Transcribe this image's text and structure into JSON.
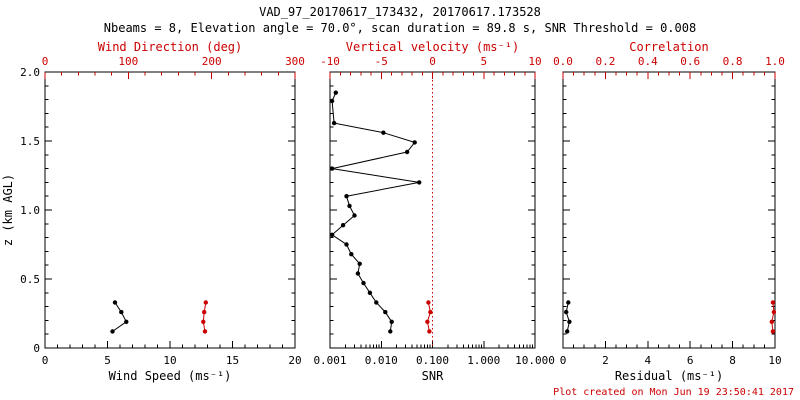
{
  "header": {
    "title": "VAD_97_20170617_173432, 20170617.173528",
    "subtitle": "Nbeams = 8, Elevation angle = 70.0°, scan duration = 89.8 s, SNR Threshold = 0.008"
  },
  "footer": {
    "created": "Plot created on Mon Jun 19 23:50:41 2017"
  },
  "colors": {
    "axis": "#000000",
    "accent": "#cc0000",
    "background": "#ffffff"
  },
  "chart_data": [
    {
      "id": "wind-panel",
      "type": "scatter",
      "y_axis": {
        "label": "z (km AGL)",
        "min": 0,
        "max": 2.0,
        "ticks": [
          0,
          0.5,
          1.0,
          1.5,
          2.0
        ],
        "tick_labels": [
          "0",
          "0.5",
          "1.0",
          "1.5",
          "2.0"
        ],
        "minor_step": 0.1,
        "show_labels": true
      },
      "x_bottom": {
        "label": "Wind Speed (ms⁻¹)",
        "scale": "linear",
        "min": 0,
        "max": 20,
        "ticks": [
          0,
          5,
          10,
          15,
          20
        ],
        "tick_labels": [
          "0",
          "5",
          "10",
          "15",
          "20"
        ],
        "minor_step": 1,
        "color": "black"
      },
      "x_top": {
        "label": "Wind Direction (deg)",
        "scale": "linear",
        "min": 0,
        "max": 300,
        "ticks": [
          0,
          100,
          200,
          300
        ],
        "tick_labels": [
          "0",
          "100",
          "200",
          "300"
        ],
        "minor_step": 20,
        "color": "red"
      },
      "series": [
        {
          "name": "wind-speed",
          "axis": "bottom",
          "color": "black",
          "line": true,
          "points": [
            {
              "x": 5.4,
              "z": 0.12
            },
            {
              "x": 6.5,
              "z": 0.19
            },
            {
              "x": 6.1,
              "z": 0.26
            },
            {
              "x": 5.6,
              "z": 0.33
            }
          ]
        },
        {
          "name": "wind-direction",
          "axis": "top",
          "color": "red",
          "line": true,
          "points": [
            {
              "x": 192,
              "z": 0.12
            },
            {
              "x": 190,
              "z": 0.19
            },
            {
              "x": 191,
              "z": 0.26
            },
            {
              "x": 193,
              "z": 0.33
            }
          ]
        }
      ]
    },
    {
      "id": "snr-panel",
      "type": "scatter",
      "y_axis": {
        "label": "",
        "min": 0,
        "max": 2.0,
        "ticks": [
          0,
          0.5,
          1.0,
          1.5,
          2.0
        ],
        "tick_labels": [
          "",
          "",
          "",
          "",
          ""
        ],
        "minor_step": 0.1,
        "show_labels": false
      },
      "x_bottom": {
        "label": "SNR",
        "scale": "log",
        "min": 0.001,
        "max": 10,
        "ticks": [
          0.001,
          0.01,
          0.1,
          1,
          10
        ],
        "tick_labels": [
          "0.001",
          "0.010",
          "0.100",
          "1.000",
          "10.000"
        ],
        "color": "black"
      },
      "x_top": {
        "label": "Vertical velocity (ms⁻¹)",
        "scale": "linear",
        "min": -10,
        "max": 10,
        "ticks": [
          -10,
          -5,
          0,
          5,
          10
        ],
        "tick_labels": [
          "-10",
          "-5",
          "0",
          "5",
          "10"
        ],
        "minor_step": 1,
        "color": "red"
      },
      "reference_lines": [
        {
          "axis": "top",
          "value": 0,
          "style": "dotted",
          "color": "red",
          "name": "zero-velocity-line"
        }
      ],
      "series": [
        {
          "name": "snr-profile",
          "axis": "bottom",
          "color": "black",
          "line": true,
          "points": [
            {
              "x": 0.015,
              "z": 0.12
            },
            {
              "x": 0.016,
              "z": 0.19
            },
            {
              "x": 0.012,
              "z": 0.26
            },
            {
              "x": 0.008,
              "z": 0.33
            },
            {
              "x": 0.006,
              "z": 0.4
            },
            {
              "x": 0.0045,
              "z": 0.47
            },
            {
              "x": 0.0035,
              "z": 0.54
            },
            {
              "x": 0.0038,
              "z": 0.61
            },
            {
              "x": 0.0026,
              "z": 0.68
            },
            {
              "x": 0.0021,
              "z": 0.75
            },
            {
              "x": 0.0011,
              "z": 0.82
            },
            {
              "x": 0.0018,
              "z": 0.89
            },
            {
              "x": 0.003,
              "z": 0.96
            },
            {
              "x": 0.0024,
              "z": 1.03
            },
            {
              "x": 0.0021,
              "z": 1.1
            },
            {
              "x": 0.055,
              "z": 1.2
            },
            {
              "x": 0.0011,
              "z": 1.3
            },
            {
              "x": 0.032,
              "z": 1.42
            },
            {
              "x": 0.045,
              "z": 1.49
            },
            {
              "x": 0.011,
              "z": 1.56
            },
            {
              "x": 0.0012,
              "z": 1.63
            },
            {
              "x": 0.0011,
              "z": 1.79
            },
            {
              "x": 0.0013,
              "z": 1.85
            }
          ]
        },
        {
          "name": "vertical-velocity",
          "axis": "top",
          "color": "red",
          "line": true,
          "points": [
            {
              "x": -0.3,
              "z": 0.12
            },
            {
              "x": -0.5,
              "z": 0.19
            },
            {
              "x": -0.2,
              "z": 0.26
            },
            {
              "x": -0.4,
              "z": 0.33
            }
          ]
        }
      ]
    },
    {
      "id": "residual-panel",
      "type": "scatter",
      "y_axis": {
        "label": "",
        "min": 0,
        "max": 2.0,
        "ticks": [
          0,
          0.5,
          1.0,
          1.5,
          2.0
        ],
        "tick_labels": [
          "",
          "",
          "",
          "",
          ""
        ],
        "minor_step": 0.1,
        "show_labels": false
      },
      "x_bottom": {
        "label": "Residual (ms⁻¹)",
        "scale": "linear",
        "min": 0,
        "max": 10,
        "ticks": [
          0,
          2,
          4,
          6,
          8,
          10
        ],
        "tick_labels": [
          "0",
          "2",
          "4",
          "6",
          "8",
          "10"
        ],
        "minor_step": 0.5,
        "color": "black"
      },
      "x_top": {
        "label": "Correlation",
        "scale": "linear",
        "min": 0,
        "max": 1,
        "ticks": [
          0,
          0.2,
          0.4,
          0.6,
          0.8,
          1.0
        ],
        "tick_labels": [
          "0.0",
          "0.2",
          "0.4",
          "0.6",
          "0.8",
          "1.0"
        ],
        "minor_step": 0.05,
        "color": "red"
      },
      "series": [
        {
          "name": "residual",
          "axis": "bottom",
          "color": "black",
          "line": true,
          "points": [
            {
              "x": 0.2,
              "z": 0.12
            },
            {
              "x": 0.3,
              "z": 0.19
            },
            {
              "x": 0.15,
              "z": 0.26
            },
            {
              "x": 0.25,
              "z": 0.33
            }
          ]
        },
        {
          "name": "correlation",
          "axis": "top",
          "color": "red",
          "line": true,
          "points": [
            {
              "x": 0.99,
              "z": 0.12
            },
            {
              "x": 0.985,
              "z": 0.19
            },
            {
              "x": 0.995,
              "z": 0.26
            },
            {
              "x": 0.99,
              "z": 0.33
            }
          ]
        }
      ]
    }
  ]
}
